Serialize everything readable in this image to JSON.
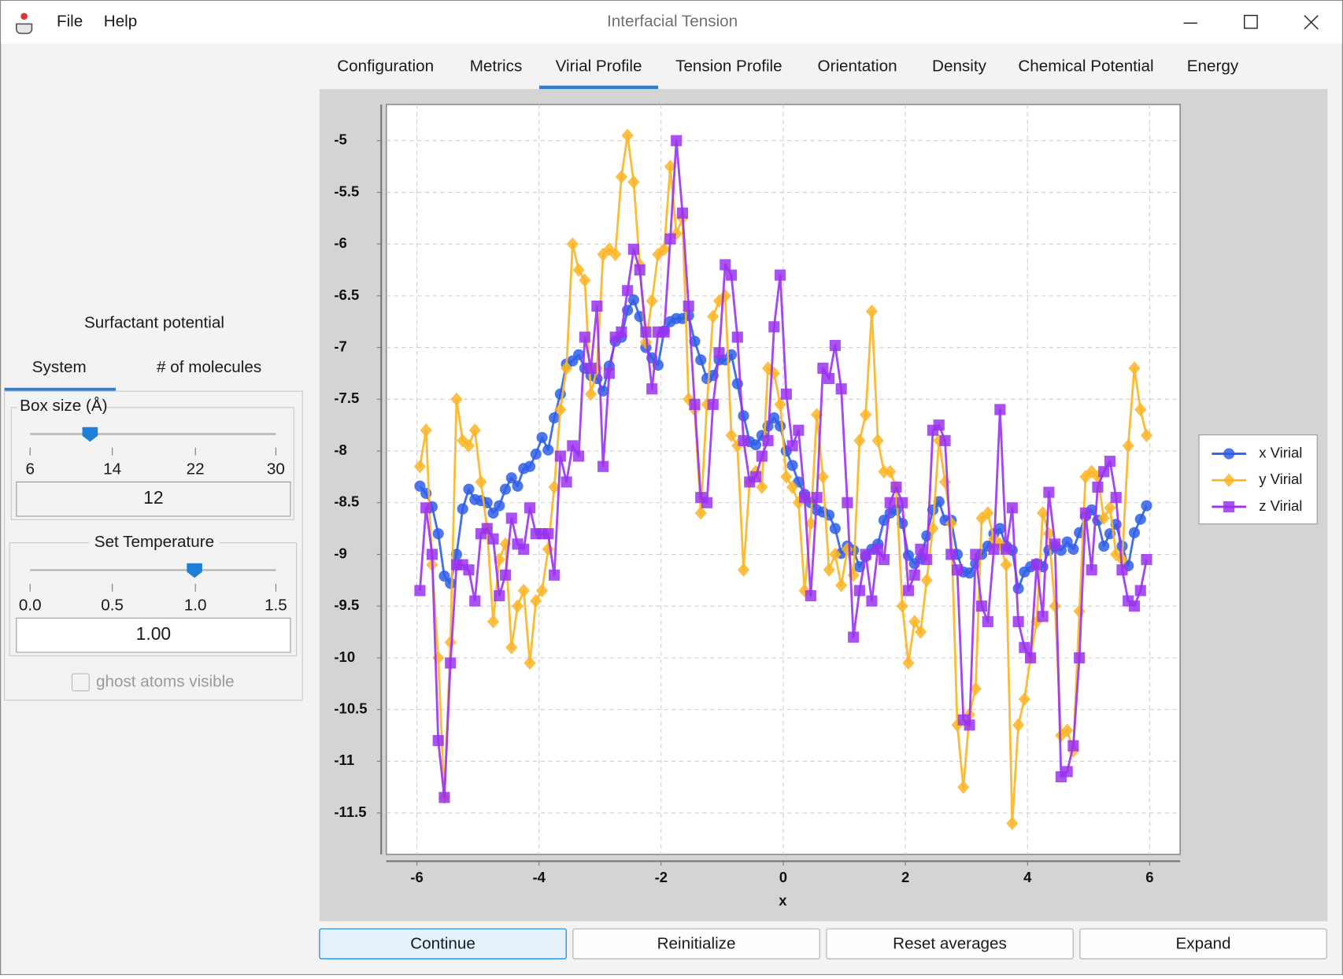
{
  "window": {
    "title": "Interfacial Tension",
    "menu": [
      "File",
      "Help"
    ]
  },
  "tabs": {
    "items": [
      "Configuration",
      "Metrics",
      "Virial Profile",
      "Tension Profile",
      "Orientation",
      "Density",
      "Chemical Potential",
      "Energy"
    ],
    "selected": 2
  },
  "left_panel": {
    "title": "Surfactant potential",
    "tabs": [
      "System",
      "# of molecules"
    ],
    "box_size": {
      "label": "Box size (Å)",
      "ticks": [
        "6",
        "14",
        "22",
        "30"
      ],
      "value": "12"
    },
    "temperature": {
      "label": "Set Temperature",
      "ticks": [
        "0.0",
        "0.5",
        "1.0",
        "1.5"
      ],
      "value": "1.00"
    },
    "checkbox": "ghost atoms visible"
  },
  "chart_data": {
    "type": "line",
    "xlabel": "x",
    "x": [
      -5.95,
      -5.85,
      -5.75,
      -5.65,
      -5.55,
      -5.45,
      -5.35,
      -5.25,
      -5.15,
      -5.05,
      -4.95,
      -4.85,
      -4.75,
      -4.65,
      -4.55,
      -4.45,
      -4.35,
      -4.25,
      -4.15,
      -4.05,
      -3.95,
      -3.85,
      -3.75,
      -3.65,
      -3.55,
      -3.45,
      -3.35,
      -3.25,
      -3.15,
      -3.05,
      -2.95,
      -2.85,
      -2.75,
      -2.65,
      -2.55,
      -2.45,
      -2.35,
      -2.25,
      -2.15,
      -2.05,
      -1.95,
      -1.85,
      -1.75,
      -1.65,
      -1.55,
      -1.45,
      -1.35,
      -1.25,
      -1.15,
      -1.05,
      -0.95,
      -0.85,
      -0.75,
      -0.65,
      -0.55,
      -0.45,
      -0.35,
      -0.25,
      -0.15,
      -0.05,
      0.05,
      0.15,
      0.25,
      0.35,
      0.45,
      0.55,
      0.65,
      0.75,
      0.85,
      0.95,
      1.05,
      1.15,
      1.25,
      1.35,
      1.45,
      1.55,
      1.65,
      1.75,
      1.85,
      1.95,
      2.05,
      2.15,
      2.25,
      2.35,
      2.45,
      2.55,
      2.65,
      2.75,
      2.85,
      2.95,
      3.05,
      3.15,
      3.25,
      3.35,
      3.45,
      3.55,
      3.65,
      3.75,
      3.85,
      3.95,
      4.05,
      4.15,
      4.25,
      4.35,
      4.45,
      4.55,
      4.65,
      4.75,
      4.85,
      4.95,
      5.05,
      5.15,
      5.25,
      5.35,
      5.45,
      5.55,
      5.65,
      5.75,
      5.85,
      5.95
    ],
    "series": [
      {
        "name": "x Virial",
        "color": "#2f5fe8",
        "marker": "circle",
        "values": [
          -8.34,
          -8.41,
          -8.54,
          -8.8,
          -9.21,
          -9.28,
          -9.0,
          -8.56,
          -8.37,
          -8.47,
          -8.48,
          -8.5,
          -8.6,
          -8.53,
          -8.37,
          -8.26,
          -8.34,
          -8.17,
          -8.15,
          -8.03,
          -7.87,
          -7.99,
          -7.68,
          -7.45,
          -7.16,
          -7.13,
          -7.07,
          -7.2,
          -7.27,
          -7.3,
          -7.42,
          -7.18,
          -6.94,
          -6.9,
          -6.64,
          -6.54,
          -6.7,
          -7.0,
          -7.1,
          -7.17,
          -6.84,
          -6.75,
          -6.72,
          -6.72,
          -6.69,
          -6.94,
          -7.12,
          -7.3,
          -7.27,
          -7.12,
          -7.12,
          -7.07,
          -7.35,
          -7.66,
          -7.91,
          -7.94,
          -7.85,
          -7.76,
          -7.68,
          -7.76,
          -8.0,
          -8.14,
          -8.3,
          -8.42,
          -8.5,
          -8.57,
          -8.59,
          -8.62,
          -8.75,
          -8.99,
          -8.92,
          -8.96,
          -9.12,
          -9.02,
          -8.95,
          -8.9,
          -8.67,
          -8.6,
          -8.57,
          -8.7,
          -9.01,
          -9.09,
          -9.04,
          -8.82,
          -8.57,
          -8.49,
          -8.67,
          -8.67,
          -9.0,
          -9.17,
          -9.18,
          -9.09,
          -9.0,
          -8.92,
          -8.8,
          -8.75,
          -8.92,
          -8.96,
          -9.33,
          -9.17,
          -9.12,
          -9.09,
          -9.12,
          -8.96,
          -8.92,
          -8.96,
          -8.88,
          -8.95,
          -8.79,
          -8.63,
          -8.57,
          -8.67,
          -8.92,
          -8.8,
          -8.71,
          -8.92,
          -9.11,
          -8.79,
          -8.66,
          -8.53
        ]
      },
      {
        "name": "y Virial",
        "color": "#fbb526",
        "marker": "diamond",
        "values": [
          -8.15,
          -7.8,
          -9.1,
          -10.0,
          -11.35,
          -9.85,
          -7.5,
          -7.9,
          -7.95,
          -7.8,
          -8.3,
          -8.75,
          -9.65,
          -9.05,
          -8.9,
          -9.9,
          -9.5,
          -9.35,
          -10.05,
          -9.45,
          -9.35,
          -8.95,
          -8.35,
          -7.6,
          -7.2,
          -6.0,
          -6.25,
          -6.35,
          -7.45,
          -7.2,
          -6.1,
          -6.05,
          -6.1,
          -5.35,
          -4.95,
          -5.4,
          -6.2,
          -6.95,
          -6.55,
          -6.1,
          -6.05,
          -5.25,
          -5.9,
          -5.75,
          -7.5,
          -7.6,
          -8.6,
          -7.55,
          -6.7,
          -6.55,
          -6.5,
          -7.85,
          -7.95,
          -9.15,
          -8.3,
          -8.2,
          -8.35,
          -7.2,
          -7.25,
          -7.55,
          -8.25,
          -8.35,
          -8.5,
          -9.35,
          -8.7,
          -7.65,
          -8.25,
          -9.15,
          -9.0,
          -9.3,
          -8.95,
          -9.2,
          -7.9,
          -7.65,
          -6.65,
          -7.9,
          -8.2,
          -8.2,
          -8.35,
          -9.5,
          -10.05,
          -9.65,
          -9.75,
          -9.25,
          -8.75,
          -7.9,
          -8.3,
          -8.7,
          -10.65,
          -11.25,
          -10.55,
          -10.3,
          -8.65,
          -8.6,
          -8.85,
          -8.9,
          -9.1,
          -11.6,
          -10.65,
          -10.4,
          -10.0,
          -9.65,
          -8.6,
          -8.8,
          -9.5,
          -10.75,
          -10.7,
          -10.9,
          -9.55,
          -8.25,
          -8.2,
          -8.25,
          -8.65,
          -8.55,
          -9.0,
          -9.05,
          -7.95,
          -7.2,
          -7.6,
          -7.85
        ]
      },
      {
        "name": "z Virial",
        "color": "#9a32f0",
        "marker": "square",
        "values": [
          -9.35,
          -8.55,
          -9.0,
          -10.8,
          -11.35,
          -10.05,
          -9.1,
          -9.1,
          -9.15,
          -9.45,
          -8.8,
          -8.75,
          -8.85,
          -9.4,
          -9.2,
          -8.65,
          -8.9,
          -8.95,
          -8.55,
          -8.8,
          -8.8,
          -8.8,
          -9.2,
          -8.05,
          -8.3,
          -7.95,
          -8.05,
          -6.9,
          -7.2,
          -6.6,
          -8.15,
          -7.25,
          -6.9,
          -6.85,
          -6.45,
          -6.05,
          -6.25,
          -6.85,
          -7.4,
          -6.85,
          -6.85,
          -5.95,
          -5.0,
          -5.7,
          -6.6,
          -7.55,
          -8.45,
          -8.5,
          -7.55,
          -7.05,
          -6.2,
          -6.3,
          -6.9,
          -7.9,
          -8.3,
          -8.25,
          -8.05,
          -7.9,
          -6.8,
          -6.3,
          -7.45,
          -7.95,
          -7.8,
          -8.45,
          -9.4,
          -8.45,
          -7.2,
          -7.3,
          -6.98,
          -7.4,
          -8.5,
          -9.8,
          -9.35,
          -9.0,
          -9.45,
          -8.95,
          -9.05,
          -8.5,
          -8.35,
          -8.5,
          -9.35,
          -9.2,
          -8.95,
          -9.05,
          -7.8,
          -7.75,
          -7.9,
          -9.0,
          -9.15,
          -10.6,
          -10.65,
          -9.0,
          -9.5,
          -9.65,
          -8.95,
          -7.6,
          -8.95,
          -8.55,
          -9.65,
          -9.9,
          -10.0,
          -9.1,
          -9.6,
          -8.4,
          -8.9,
          -11.15,
          -11.1,
          -10.85,
          -10.0,
          -8.6,
          -9.15,
          -8.35,
          -8.2,
          -8.1,
          -8.45,
          -9.15,
          -9.45,
          -9.5,
          -9.35,
          -9.05
        ]
      }
    ],
    "xlim": [
      -6.5,
      6.5
    ],
    "ylim": [
      -11.9,
      -4.65
    ],
    "xticks": [
      -6,
      -4,
      -2,
      0,
      2,
      4,
      6
    ],
    "yticks": [
      -11.5,
      -11,
      -10.5,
      -10,
      -9.5,
      -9,
      -8.5,
      -8,
      -7.5,
      -7,
      -6.5,
      -6,
      -5.5,
      -5
    ],
    "grid": true,
    "legend": "right"
  },
  "buttons": [
    "Continue",
    "Reinitialize",
    "Reset averages",
    "Expand"
  ]
}
